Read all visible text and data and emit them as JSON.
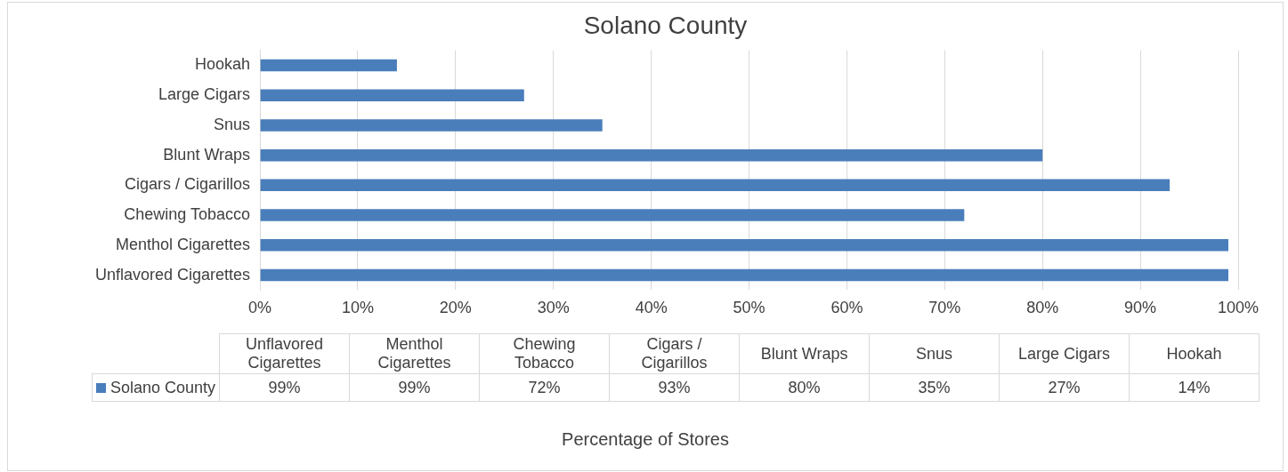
{
  "chart_data": {
    "type": "bar",
    "orientation": "horizontal",
    "title": "Solano County",
    "annotations": [
      "Percentage of Stores"
    ],
    "categories": [
      "Hookah",
      "Large Cigars",
      "Snus",
      "Blunt Wraps",
      "Cigars / Cigarillos",
      "Chewing Tobacco",
      "Menthol Cigarettes",
      "Unflavored Cigarettes"
    ],
    "series": [
      {
        "name": "Solano County",
        "color": "#4a7ebb",
        "values": [
          14,
          27,
          35,
          80,
          93,
          72,
          99,
          99
        ]
      }
    ],
    "xlim": [
      0,
      100
    ],
    "xticks": [
      {
        "value": 0,
        "label": "0%"
      },
      {
        "value": 10,
        "label": "10%"
      },
      {
        "value": 20,
        "label": "20%"
      },
      {
        "value": 30,
        "label": "30%"
      },
      {
        "value": 40,
        "label": "40%"
      },
      {
        "value": 50,
        "label": "50%"
      },
      {
        "value": 60,
        "label": "60%"
      },
      {
        "value": 70,
        "label": "70%"
      },
      {
        "value": 80,
        "label": "80%"
      },
      {
        "value": 90,
        "label": "90%"
      },
      {
        "value": 100,
        "label": "100%"
      }
    ],
    "value_labels": [
      "14%",
      "27%",
      "35%",
      "80%",
      "93%",
      "72%",
      "99%",
      "99%"
    ],
    "grid": "x",
    "legend": "bottom"
  }
}
